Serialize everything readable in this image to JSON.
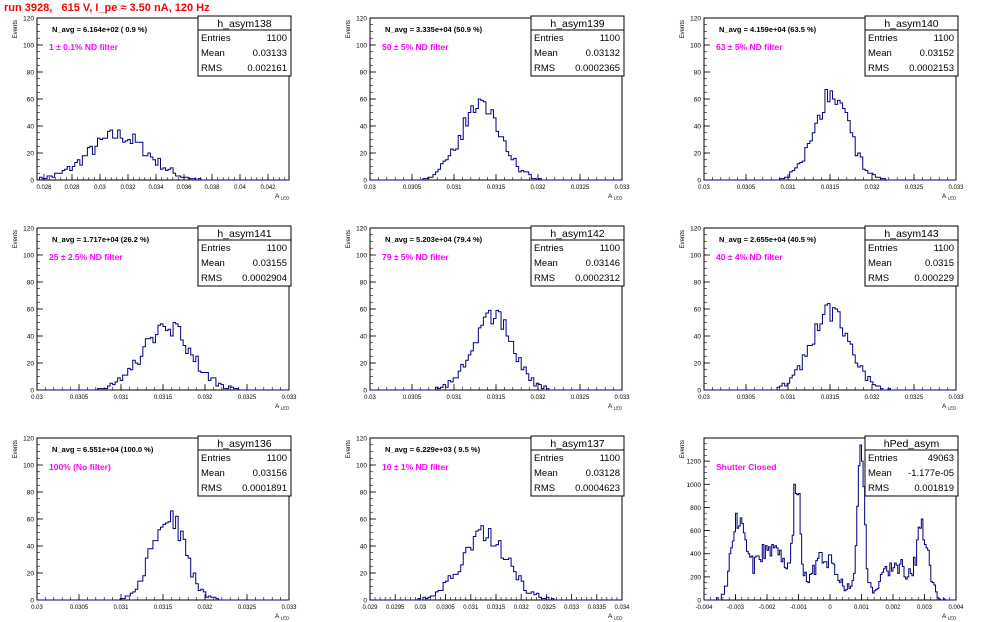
{
  "page_title": "run 3928,   615 V, I_pe ≈ 3.50 nA, 120 Hz",
  "colors": {
    "title": "#ff0000",
    "label": "#ff00ff",
    "histogram": "#000080",
    "axis": "#000000",
    "background": "#ffffff"
  },
  "axis_text": {
    "y_title": "Events",
    "x_title_main": "A",
    "x_title_sub": "LED"
  },
  "chart_data": [
    {
      "type": "histogram",
      "name": "h_asym138",
      "xlim": [
        0.0255,
        0.0435
      ],
      "ylim": [
        0,
        120
      ],
      "xticks": [
        "0.026",
        "0.028",
        "0.03",
        "0.032",
        "0.034",
        "0.036",
        "0.038",
        "0.04",
        "0.042"
      ],
      "yticks": [
        "0",
        "20",
        "40",
        "60",
        "80",
        "100",
        "120"
      ],
      "nbins": 100,
      "stats": {
        "entries": "1100",
        "mean": "0.03133",
        "rms": "0.002161"
      },
      "n_avg": "N_avg = 6.164e+02 ( 0.9 %)",
      "label": "1 ± 0.1% ND filter",
      "shape": {
        "peaks": [
          [
            0.0313,
            0.0021,
            33
          ]
        ]
      },
      "grid": false
    },
    {
      "type": "histogram",
      "name": "h_asym139",
      "xlim": [
        0.03,
        0.033
      ],
      "ylim": [
        0,
        120
      ],
      "xticks": [
        "0.03",
        "0.0305",
        "0.031",
        "0.0315",
        "0.032",
        "0.0325",
        "0.033"
      ],
      "yticks": [
        "0",
        "20",
        "40",
        "60",
        "80",
        "100",
        "120"
      ],
      "nbins": 100,
      "stats": {
        "entries": "1100",
        "mean": "0.03132",
        "rms": "0.0002365"
      },
      "n_avg": "N_avg = 3.335e+04 (50.9 %)",
      "label": "50 ± 5% ND filter",
      "shape": {
        "peaks": [
          [
            0.03132,
            0.00024,
            56
          ]
        ]
      },
      "grid": false
    },
    {
      "type": "histogram",
      "name": "h_asym140",
      "xlim": [
        0.03,
        0.033
      ],
      "ylim": [
        0,
        120
      ],
      "xticks": [
        "0.03",
        "0.0305",
        "0.031",
        "0.0315",
        "0.032",
        "0.0325",
        "0.033"
      ],
      "yticks": [
        "0",
        "20",
        "40",
        "60",
        "80",
        "100",
        "120"
      ],
      "nbins": 100,
      "stats": {
        "entries": "1100",
        "mean": "0.03152",
        "rms": "0.0002153"
      },
      "n_avg": "N_avg = 4.159e+04 (63.5 %)",
      "label": "63 ± 5% ND filter",
      "shape": {
        "peaks": [
          [
            0.03152,
            0.00021,
            62
          ]
        ]
      },
      "grid": false
    },
    {
      "type": "histogram",
      "name": "h_asym141",
      "xlim": [
        0.03,
        0.033
      ],
      "ylim": [
        0,
        120
      ],
      "xticks": [
        "0.03",
        "0.0305",
        "0.031",
        "0.0315",
        "0.032",
        "0.0325",
        "0.033"
      ],
      "yticks": [
        "0",
        "20",
        "40",
        "60",
        "80",
        "100",
        "120"
      ],
      "nbins": 100,
      "stats": {
        "entries": "1100",
        "mean": "0.03155",
        "rms": "0.0002904"
      },
      "n_avg": "N_avg = 1.717e+04 (26.2 %)",
      "label": "25 ± 2.5% ND filter",
      "shape": {
        "peaks": [
          [
            0.03155,
            0.00029,
            46
          ]
        ]
      },
      "grid": false
    },
    {
      "type": "histogram",
      "name": "h_asym142",
      "xlim": [
        0.03,
        0.033
      ],
      "ylim": [
        0,
        120
      ],
      "xticks": [
        "0.03",
        "0.0305",
        "0.031",
        "0.0315",
        "0.032",
        "0.0325",
        "0.033"
      ],
      "yticks": [
        "0",
        "20",
        "40",
        "60",
        "80",
        "100",
        "120"
      ],
      "nbins": 100,
      "stats": {
        "entries": "1100",
        "mean": "0.03146",
        "rms": "0.0002312"
      },
      "n_avg": "N_avg = 5.203e+04 (79.4 %)",
      "label": "79 ± 5% ND filter",
      "shape": {
        "peaks": [
          [
            0.03146,
            0.00023,
            56
          ]
        ]
      },
      "grid": false
    },
    {
      "type": "histogram",
      "name": "h_asym143",
      "xlim": [
        0.03,
        0.033
      ],
      "ylim": [
        0,
        120
      ],
      "xticks": [
        "0.03",
        "0.0305",
        "0.031",
        "0.0315",
        "0.032",
        "0.0325",
        "0.033"
      ],
      "yticks": [
        "0",
        "20",
        "40",
        "60",
        "80",
        "100",
        "120"
      ],
      "nbins": 100,
      "stats": {
        "entries": "1100",
        "mean": "0.0315",
        "rms": "0.000229"
      },
      "n_avg": "N_avg = 2.655e+04 (40.5 %)",
      "label": "40 ± 4% ND filter",
      "shape": {
        "peaks": [
          [
            0.0315,
            0.00023,
            57
          ]
        ]
      },
      "grid": false
    },
    {
      "type": "histogram",
      "name": "h_asym136",
      "xlim": [
        0.03,
        0.033
      ],
      "ylim": [
        0,
        120
      ],
      "xticks": [
        "0.03",
        "0.0305",
        "0.031",
        "0.0315",
        "0.032",
        "0.0325",
        "0.033"
      ],
      "yticks": [
        "0",
        "20",
        "40",
        "60",
        "80",
        "100",
        "120"
      ],
      "nbins": 100,
      "stats": {
        "entries": "1100",
        "mean": "0.03156",
        "rms": "0.0001891"
      },
      "n_avg": "N_avg = 6.551e+04 (100.0 %)",
      "label": "100% (No filter)",
      "shape": {
        "peaks": [
          [
            0.03156,
            0.00019,
            66
          ]
        ]
      },
      "grid": false
    },
    {
      "type": "histogram",
      "name": "h_asym137",
      "xlim": [
        0.029,
        0.034
      ],
      "ylim": [
        0,
        120
      ],
      "xticks": [
        "0.029",
        "0.0295",
        "0.03",
        "0.0305",
        "0.031",
        "0.0315",
        "0.032",
        "0.0325",
        "0.033",
        "0.0335",
        "0.034"
      ],
      "yticks": [
        "0",
        "20",
        "40",
        "60",
        "80",
        "100",
        "120"
      ],
      "nbins": 100,
      "stats": {
        "entries": "1100",
        "mean": "0.03128",
        "rms": "0.0004623"
      },
      "n_avg": "N_avg = 6.229e+03 ( 9.5 %)",
      "label": "10 ± 1% ND filter",
      "shape": {
        "peaks": [
          [
            0.03128,
            0.00045,
            48
          ]
        ]
      },
      "grid": false
    },
    {
      "type": "histogram",
      "name": "hPed_asym",
      "xlim": [
        -0.004,
        0.004
      ],
      "ylim": [
        0,
        1400
      ],
      "xticks": [
        "-0.004",
        "-0.003",
        "-0.002",
        "-0.001",
        "0",
        "0.001",
        "0.002",
        "0.003",
        "0.004"
      ],
      "yticks": [
        "0",
        "200",
        "400",
        "600",
        "800",
        "1000",
        "1200"
      ],
      "nbins": 160,
      "stats": {
        "entries": "49063",
        "mean": "-1.177e-05",
        "rms": "0.001819"
      },
      "n_avg": "",
      "label": "Shutter Closed",
      "shape": {
        "peaks": [
          [
            -0.0029,
            0.00022,
            690
          ],
          [
            -0.00105,
            0.00011,
            930
          ],
          [
            0.00098,
            0.00011,
            1220
          ],
          [
            0.00295,
            0.00019,
            600
          ],
          [
            -0.0019,
            0.00045,
            460
          ],
          [
            -0.0002,
            0.0003,
            240
          ],
          [
            0.0021,
            0.0004,
            300
          ],
          [
            0.0,
            0.0009,
            130
          ]
        ]
      },
      "grid": false
    }
  ]
}
